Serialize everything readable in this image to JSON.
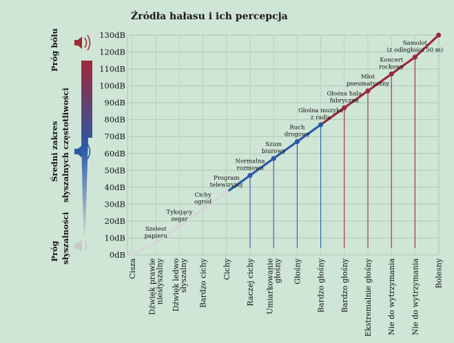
{
  "chart_data": {
    "type": "line",
    "title": "Źródła hałasu i ich percepcja",
    "y_unit": "dB",
    "ylim": [
      0,
      130
    ],
    "yticks": [
      "0dB",
      "10dB",
      "20dB",
      "30dB",
      "40dB",
      "50dB",
      "60dB",
      "70dB",
      "80dB",
      "90dB",
      "100dB",
      "110dB",
      "120dB",
      "130dB"
    ],
    "grid": true,
    "categories": [
      [
        "Cisza"
      ],
      [
        "Dźwięk prawie",
        "niesłyszalny"
      ],
      [
        "Dźwięk ledwo",
        "słyszalny"
      ],
      [
        "Bardzo cichy"
      ],
      [
        "Cichy"
      ],
      [
        "Raczej cichy"
      ],
      [
        "Umiarkowanie",
        "głośny"
      ],
      [
        "Głośny"
      ],
      [
        "Bardzo głośny"
      ],
      [
        "Bardzo głośny"
      ],
      [
        "Ekstremalnie głośny"
      ],
      [
        "Nie do wytrzymania"
      ],
      [
        "Nie do wytrzymania"
      ],
      [
        "Bolesny"
      ]
    ],
    "values": [
      0,
      7,
      17,
      27,
      37,
      47,
      57,
      67,
      77,
      87,
      97,
      107,
      117,
      130
    ],
    "zones": [
      "light",
      "light",
      "light",
      "light",
      "light",
      "blue",
      "blue",
      "blue",
      "blue",
      "red",
      "red",
      "red",
      "red",
      "red"
    ],
    "annotations": [
      {
        "index": 1,
        "lines": [
          "Szelest",
          "papieru"
        ]
      },
      {
        "index": 2,
        "lines": [
          "Tykający",
          "zegar"
        ]
      },
      {
        "index": 3,
        "lines": [
          "Cichy",
          "ogród"
        ]
      },
      {
        "index": 4,
        "lines": [
          "Program",
          "telewizyjny"
        ]
      },
      {
        "index": 5,
        "lines": [
          "Normalna",
          "rozmowa"
        ]
      },
      {
        "index": 6,
        "lines": [
          "Szum",
          "biurowy"
        ]
      },
      {
        "index": 7,
        "lines": [
          "Ruch",
          "drogowy"
        ]
      },
      {
        "index": 8,
        "lines": [
          "Głośna muzyka",
          "z radia"
        ]
      },
      {
        "index": 9,
        "lines": [
          "Głośna hala",
          "fabryczna"
        ]
      },
      {
        "index": 10,
        "lines": [
          "Młot",
          "pneumatyczny"
        ]
      },
      {
        "index": 11,
        "lines": [
          "Koncert",
          "rockowy"
        ]
      },
      {
        "index": 12,
        "lines": [
          "Samolot",
          "(z odległości 50 m)"
        ]
      }
    ],
    "side_labels": {
      "pain": "Próg bólu",
      "middle_1": "Średni zakres",
      "middle_2": "słyszalnych częstotliwości",
      "threshold_1": "Próg",
      "threshold_2": "słyszalności"
    }
  },
  "colors": {
    "background": "#cfe5d6",
    "grid": "#aec7b6",
    "light": "#d6d6d6",
    "blue": "#2a5aa6",
    "red": "#9a2a3e",
    "speaker_red": "#a02a36",
    "speaker_blue": "#2a5aa6",
    "speaker_grey": "#c8c8c8"
  }
}
